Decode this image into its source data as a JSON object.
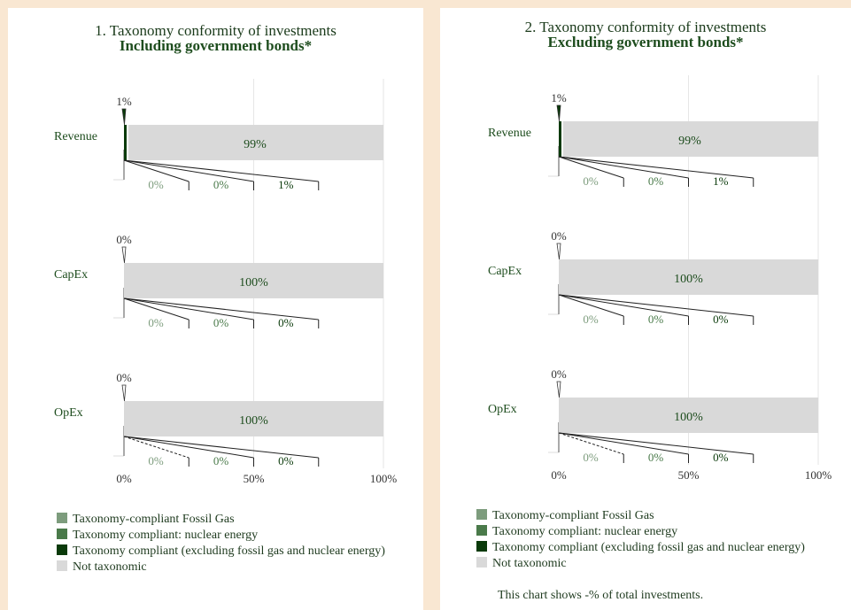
{
  "colors": {
    "fossil_gas": "#7d9c7d",
    "nuclear": "#4a7a4a",
    "taxonomy_compliant": "#0a3a0a",
    "not_taxonomic": "#d9d9d9"
  },
  "chart_data": [
    {
      "type": "bar",
      "title": "1. Taxonomy conformity of investments",
      "subtitle": "Including government bonds*",
      "categories": [
        "Revenue",
        "CapEx",
        "OpEx"
      ],
      "xlim": [
        0,
        100
      ],
      "xticks": [
        "0%",
        "50%",
        "100%"
      ],
      "series": [
        {
          "name": "Taxonomy-compliant Fossil Gas",
          "values": [
            0,
            0,
            0
          ],
          "labels": [
            "0%",
            "0%",
            "0%"
          ]
        },
        {
          "name": "Taxonomy compliant: nuclear energy",
          "values": [
            0,
            0,
            0
          ],
          "labels": [
            "0%",
            "0%",
            "0%"
          ]
        },
        {
          "name": "Taxonomy compliant (excluding fossil gas and nuclear energy)",
          "values": [
            1,
            0,
            0
          ],
          "labels": [
            "1%",
            "0%",
            "0%"
          ]
        },
        {
          "name": "Not taxonomic",
          "values": [
            99,
            100,
            100
          ],
          "labels": [
            "99%",
            "100%",
            "100%"
          ]
        }
      ],
      "total_labels": [
        "1%",
        "0%",
        "0%"
      ]
    },
    {
      "type": "bar",
      "title": "2. Taxonomy conformity of investments",
      "subtitle": "Excluding government bonds*",
      "categories": [
        "Revenue",
        "CapEx",
        "OpEx"
      ],
      "xlim": [
        0,
        100
      ],
      "xticks": [
        "0%",
        "50%",
        "100%"
      ],
      "series": [
        {
          "name": "Taxonomy-compliant Fossil Gas",
          "values": [
            0,
            0,
            0
          ],
          "labels": [
            "0%",
            "0%",
            "0%"
          ]
        },
        {
          "name": "Taxonomy compliant: nuclear energy",
          "values": [
            0,
            0,
            0
          ],
          "labels": [
            "0%",
            "0%",
            "0%"
          ]
        },
        {
          "name": "Taxonomy compliant (excluding fossil gas and nuclear energy)",
          "values": [
            1,
            0,
            0
          ],
          "labels": [
            "1%",
            "0%",
            "0%"
          ]
        },
        {
          "name": "Not taxonomic",
          "values": [
            99,
            100,
            100
          ],
          "labels": [
            "99%",
            "100%",
            "100%"
          ]
        }
      ],
      "total_labels": [
        "1%",
        "0%",
        "0%"
      ]
    }
  ],
  "legend": [
    {
      "label": "Taxonomy-compliant Fossil Gas",
      "color": "#7d9c7d"
    },
    {
      "label": "Taxonomy compliant: nuclear energy",
      "color": "#4a7a4a"
    },
    {
      "label": "Taxonomy compliant (excluding fossil gas and nuclear energy)",
      "color": "#0a3a0a"
    },
    {
      "label": "Not taxonomic",
      "color": "#d9d9d9"
    }
  ],
  "note": "This chart shows -% of total investments."
}
